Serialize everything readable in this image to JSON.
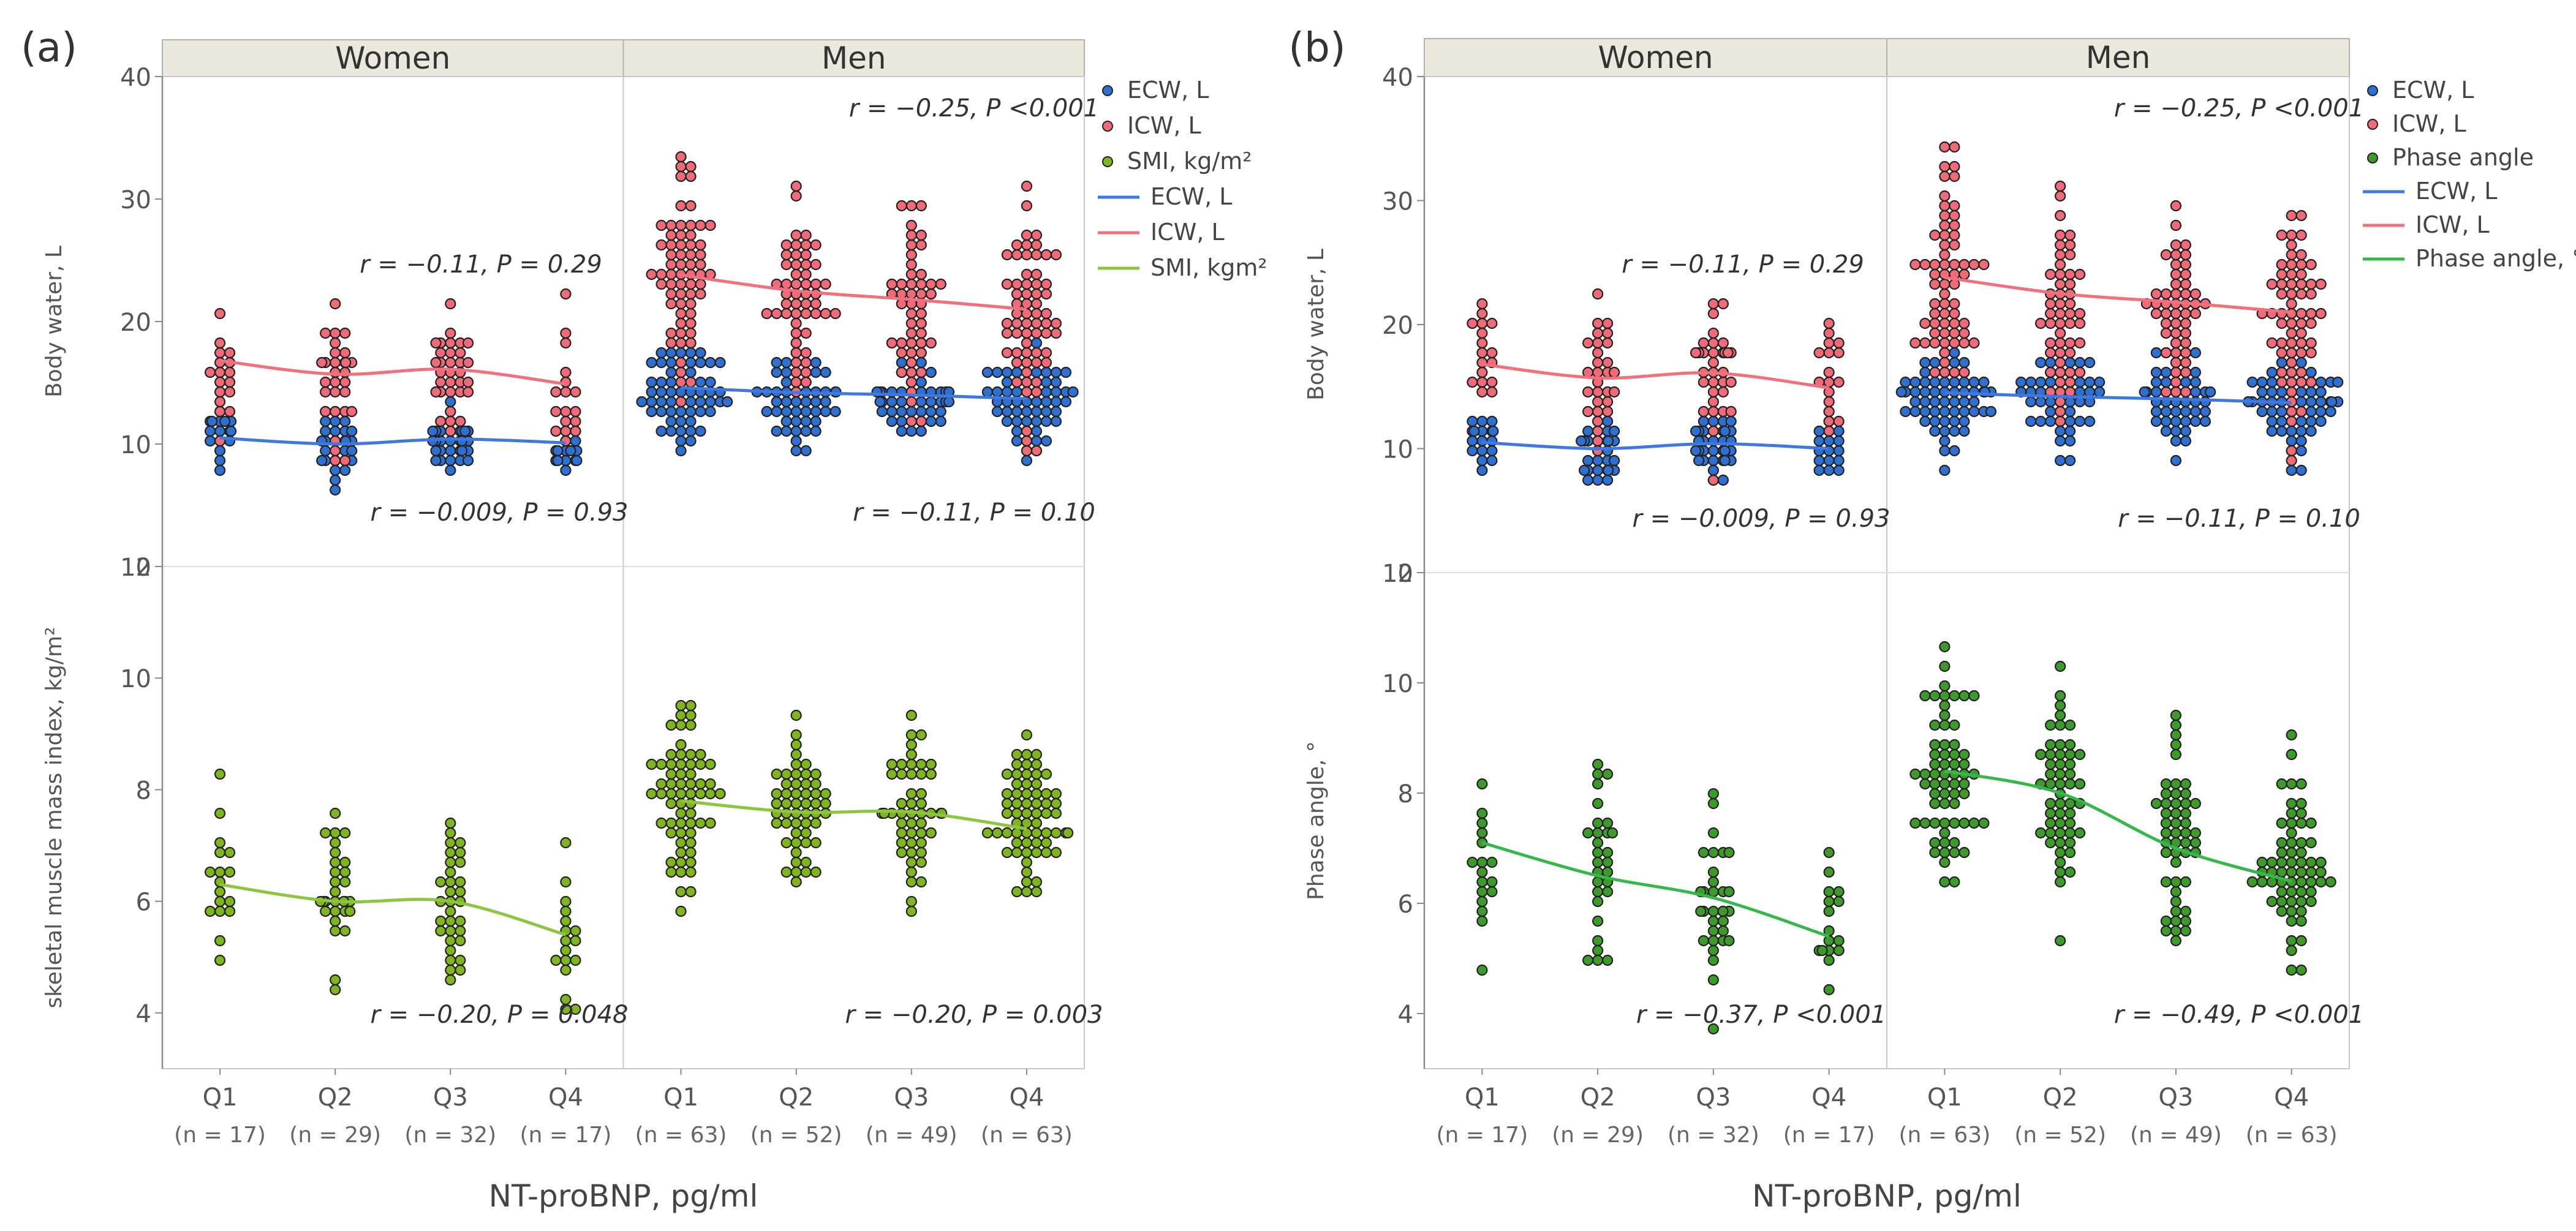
{
  "chart_data": [
    {
      "type": "scatter",
      "panel_label": "(a)",
      "xlabel": "NT-proBNP, pg/ml",
      "groups": [
        "Women",
        "Men"
      ],
      "categories": [
        "Q1",
        "Q2",
        "Q3",
        "Q4"
      ],
      "counts": [
        [
          "(n = 17)",
          "(n = 29)",
          "(n = 32)",
          "(n = 17)"
        ],
        [
          "(n = 63)",
          "(n = 52)",
          "(n = 49)",
          "(n = 63)"
        ]
      ],
      "legend": [
        {
          "kind": "marker",
          "label": "ECW, L",
          "color": "#2e6fd0"
        },
        {
          "kind": "marker",
          "label": "ICW, L",
          "color": "#f06a78"
        },
        {
          "kind": "marker",
          "label": "SMI, kg/m²",
          "color": "#7fb51e"
        },
        {
          "kind": "line",
          "label": "ECW, L",
          "color": "#3f78e0"
        },
        {
          "kind": "line",
          "label": "ICW, L",
          "color": "#f2707c"
        },
        {
          "kind": "line",
          "label": "SMI, kgm²",
          "color": "#8cc63e"
        }
      ],
      "top": {
        "ylabel": "Body water, L",
        "ylim": [
          0,
          40
        ],
        "yticks": [
          "0",
          "10",
          "20",
          "30",
          "40"
        ],
        "series": [
          {
            "name": "ECW, L",
            "medians": {
              "Women": [
                10.8,
                10.0,
                10.5,
                10.2
              ],
              "Men": [
                14.5,
                14.0,
                14.0,
                13.5
              ]
            },
            "fit": {
              "Women": [
                10.5,
                10.0,
                10.4,
                10.1
              ],
              "Men": [
                14.6,
                14.2,
                14.0,
                13.7
              ]
            }
          },
          {
            "name": "ICW, L",
            "medians": {
              "Women": [
                16.5,
                15.5,
                16.0,
                14.5
              ],
              "Men": [
                23.5,
                22.0,
                21.5,
                20.5
              ]
            },
            "fit": {
              "Women": [
                16.8,
                15.7,
                16.1,
                14.9
              ],
              "Men": [
                23.8,
                22.5,
                21.8,
                21.0
              ]
            }
          }
        ],
        "annotations": {
          "Women": {
            "upper": "r = −0.11, P = 0.29",
            "lower": "r = −0.009, P = 0.93"
          },
          "Men": {
            "upper": "r = −0.25, P <0.001",
            "lower": "r = −0.11, P = 0.10"
          }
        }
      },
      "bottom": {
        "ylabel": "skeletal muscle mass index, kg/m²",
        "ylim": [
          3,
          12
        ],
        "yticks": [
          "4",
          "6",
          "8",
          "10",
          "12"
        ],
        "series": [
          {
            "name": "SMI, kg/m²",
            "medians": {
              "Women": [
                6.3,
                6.0,
                6.0,
                5.4
              ],
              "Men": [
                7.8,
                7.6,
                7.6,
                7.3
              ]
            },
            "fit": {
              "Women": [
                6.3,
                6.0,
                6.0,
                5.4
              ],
              "Men": [
                7.8,
                7.6,
                7.6,
                7.3
              ]
            }
          }
        ],
        "annotations": {
          "Women": "r = −0.20, P = 0.048",
          "Men": "r = −0.20, P = 0.003"
        }
      }
    },
    {
      "type": "scatter",
      "panel_label": "(b)",
      "xlabel": "NT-proBNP, pg/ml",
      "groups": [
        "Women",
        "Men"
      ],
      "categories": [
        "Q1",
        "Q2",
        "Q3",
        "Q4"
      ],
      "counts": [
        [
          "(n = 17)",
          "(n = 29)",
          "(n = 32)",
          "(n = 17)"
        ],
        [
          "(n = 63)",
          "(n = 52)",
          "(n = 49)",
          "(n = 63)"
        ]
      ],
      "legend": [
        {
          "kind": "marker",
          "label": "ECW, L",
          "color": "#2e6fd0"
        },
        {
          "kind": "marker",
          "label": "ICW, L",
          "color": "#f06a78"
        },
        {
          "kind": "marker",
          "label": "Phase angle",
          "color": "#3f9a2c"
        },
        {
          "kind": "line",
          "label": "ECW, L",
          "color": "#3f78e0"
        },
        {
          "kind": "line",
          "label": "ICW, L",
          "color": "#f2707c"
        },
        {
          "kind": "line",
          "label": "Phase angle, °",
          "color": "#35b84a"
        }
      ],
      "top": {
        "ylabel": "Body water, L",
        "ylim": [
          0,
          40
        ],
        "yticks": [
          "0",
          "10",
          "20",
          "30",
          "40"
        ],
        "series": [
          {
            "name": "ECW, L",
            "medians": {
              "Women": [
                10.8,
                10.0,
                10.5,
                10.2
              ],
              "Men": [
                14.0,
                14.0,
                14.0,
                13.5
              ]
            },
            "fit": {
              "Women": [
                10.5,
                10.0,
                10.4,
                10.0
              ],
              "Men": [
                14.5,
                14.2,
                14.0,
                13.7
              ]
            }
          },
          {
            "name": "ICW, L",
            "medians": {
              "Women": [
                16.5,
                15.5,
                16.0,
                14.5
              ],
              "Men": [
                23.5,
                22.0,
                21.5,
                20.5
              ]
            },
            "fit": {
              "Women": [
                16.8,
                15.7,
                16.1,
                14.9
              ],
              "Men": [
                23.8,
                22.5,
                21.8,
                21.0
              ]
            }
          }
        ],
        "annotations": {
          "Women": {
            "upper": "r = −0.11, P = 0.29",
            "lower": "r = −0.009, P = 0.93"
          },
          "Men": {
            "upper": "r = −0.25, P <0.001",
            "lower": "r = −0.11, P = 0.10"
          }
        }
      },
      "bottom": {
        "ylabel": "Phase angle, °",
        "ylim": [
          3,
          12
        ],
        "yticks": [
          "4",
          "6",
          "8",
          "10",
          "12"
        ],
        "series": [
          {
            "name": "Phase angle",
            "medians": {
              "Women": [
                7.0,
                6.5,
                6.0,
                5.4
              ],
              "Men": [
                8.4,
                8.0,
                7.0,
                6.5
              ]
            },
            "fit": {
              "Women": [
                7.1,
                6.5,
                6.1,
                5.4
              ],
              "Men": [
                8.4,
                8.0,
                7.0,
                6.4
              ]
            }
          }
        ],
        "annotations": {
          "Women": "r = −0.37, P <0.001",
          "Men": "r = −0.49, P <0.001"
        }
      }
    }
  ]
}
